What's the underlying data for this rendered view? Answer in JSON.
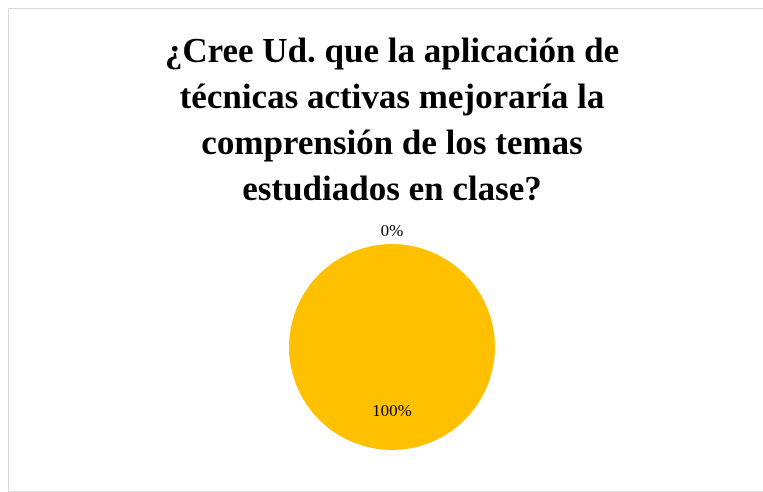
{
  "chart_data": {
    "type": "pie",
    "title": "¿Cree Ud. que la aplicación de técnicas activas mejoraría la comprensión de los temas estudiados en clase?",
    "categories": [
      null,
      null
    ],
    "values": [
      0,
      100
    ],
    "value_labels": [
      "0%",
      "100%"
    ],
    "colors": [
      "#FFC000",
      "#FFC000"
    ]
  }
}
